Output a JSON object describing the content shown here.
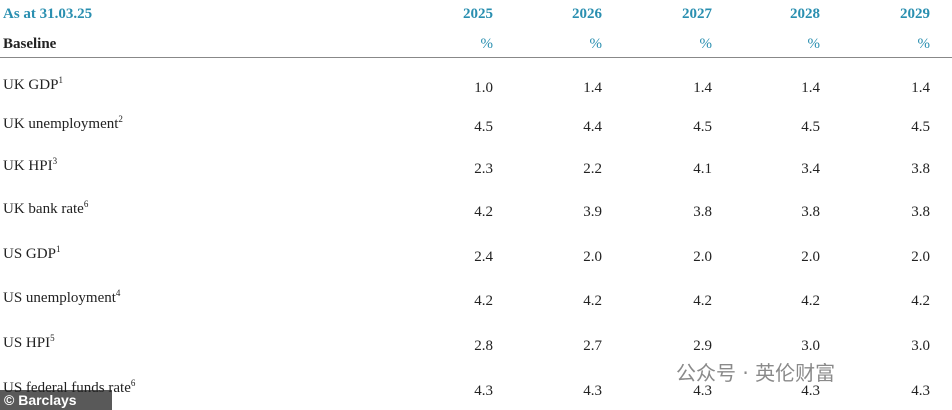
{
  "header": {
    "title": "As at 31.03.25",
    "years": [
      "2025",
      "2026",
      "2027",
      "2028",
      "2029"
    ]
  },
  "subheader": {
    "title": "Baseline",
    "units": [
      "%",
      "%",
      "%",
      "%",
      "%"
    ]
  },
  "table": {
    "rows": [
      {
        "label": "UK GDP",
        "note": "1",
        "values": [
          "1.0",
          "1.4",
          "1.4",
          "1.4",
          "1.4"
        ]
      },
      {
        "label": "UK unemployment",
        "note": "2",
        "values": [
          "4.5",
          "4.4",
          "4.5",
          "4.5",
          "4.5"
        ]
      },
      {
        "label": "UK HPI",
        "note": "3",
        "values": [
          "2.3",
          "2.2",
          "4.1",
          "3.4",
          "3.8"
        ]
      },
      {
        "label": "UK bank rate",
        "note": "6",
        "values": [
          "4.2",
          "3.9",
          "3.8",
          "3.8",
          "3.8"
        ]
      },
      {
        "label": "US GDP",
        "note": "1",
        "values": [
          "2.4",
          "2.0",
          "2.0",
          "2.0",
          "2.0"
        ]
      },
      {
        "label": "US unemployment",
        "note": "4",
        "values": [
          "4.2",
          "4.2",
          "4.2",
          "4.2",
          "4.2"
        ]
      },
      {
        "label": "US HPI",
        "note": "5",
        "values": [
          "2.8",
          "2.7",
          "2.9",
          "3.0",
          "3.0"
        ]
      },
      {
        "label": "US federal funds rate",
        "note": "6",
        "values": [
          "4.3",
          "4.3",
          "4.3",
          "4.3",
          "4.3"
        ]
      }
    ]
  },
  "watermarks": {
    "credit": "© Barclays",
    "wechat": "公众号 · 英伦财富"
  }
}
